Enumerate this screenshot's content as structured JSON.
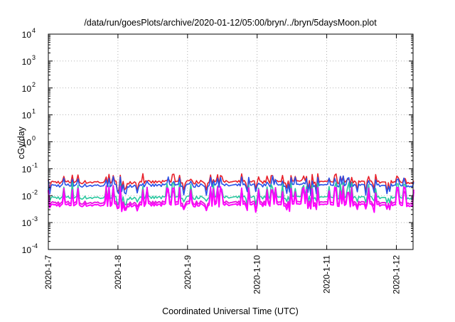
{
  "chart_data": {
    "type": "line",
    "title": "/data/run/goesPlots/archive/2020-01-12/05:00/bryn/../bryn/5daysMoon.plot",
    "xlabel": "Coordinated Universal Time (UTC)",
    "ylabel": "cGy/day",
    "yscale": "log",
    "ylim": [
      0.0001,
      10000
    ],
    "y_ticks": [
      {
        "base": "10",
        "exp": "-4",
        "value": 0.0001
      },
      {
        "base": "10",
        "exp": "-3",
        "value": 0.001
      },
      {
        "base": "10",
        "exp": "-2",
        "value": 0.01
      },
      {
        "base": "10",
        "exp": "-1",
        "value": 0.1
      },
      {
        "base": "10",
        "exp": "0",
        "value": 1
      },
      {
        "base": "10",
        "exp": "1",
        "value": 10
      },
      {
        "base": "10",
        "exp": "2",
        "value": 100
      },
      {
        "base": "10",
        "exp": "3",
        "value": 1000
      },
      {
        "base": "10",
        "exp": "4",
        "value": 10000
      }
    ],
    "x_ticks": [
      "2020-1-7",
      "2020-1-8",
      "2020-1-9",
      "2020-1-10",
      "2020-1-11",
      "2020-1-12"
    ],
    "xlim_days": [
      0,
      5.25
    ],
    "grid": true,
    "legend": "none",
    "series": [
      {
        "color": "#e8202a",
        "base": 0.032,
        "spike": 0.055,
        "dip": 0.016
      },
      {
        "color": "#2a52e8",
        "base": 0.024,
        "spike": 0.045,
        "dip": 0.012
      },
      {
        "color": "#2ac8a0",
        "base": 0.0085,
        "spike": 0.026,
        "dip": 0.0055
      },
      {
        "color": "#e818e0",
        "base": 0.0055,
        "spike": 0.02,
        "dip": 0.0035
      },
      {
        "color": "#ff00ff",
        "base": 0.0045,
        "spike": 0.018,
        "dip": 0.003
      }
    ]
  }
}
